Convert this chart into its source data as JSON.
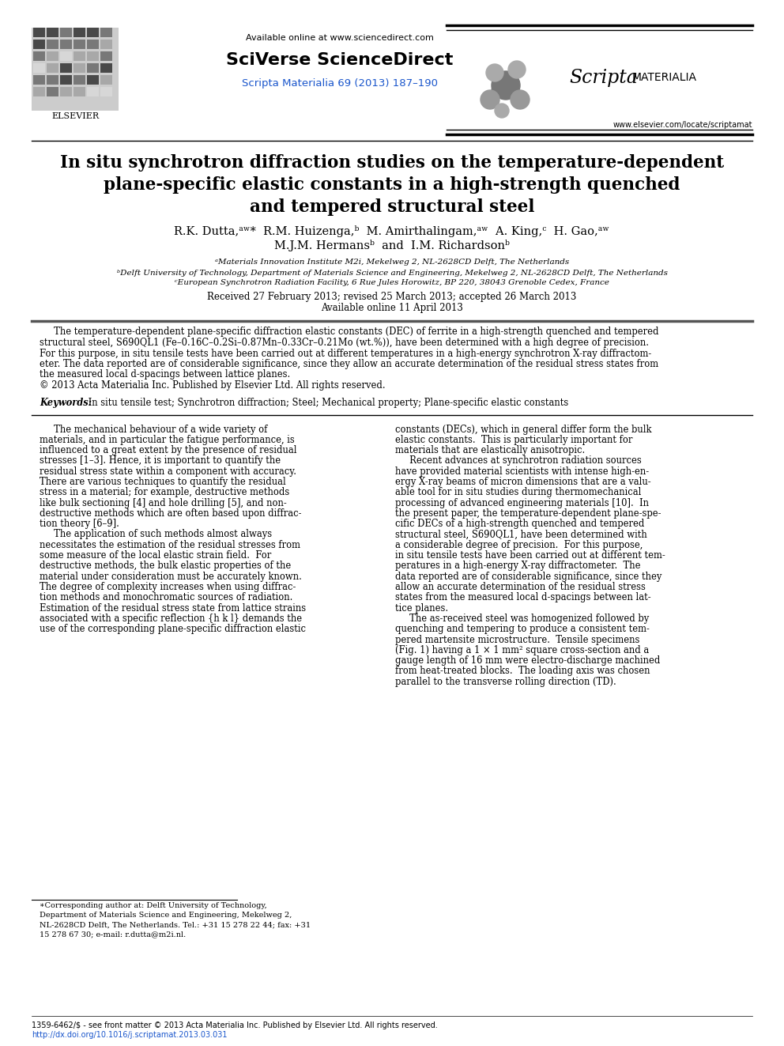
{
  "background_color": "#ffffff",
  "page_width": 9.92,
  "page_height": 13.23,
  "header": {
    "available_online_text": "Available online at www.sciencedirect.com",
    "sciverse_text": "SciVerse ScienceDirect",
    "journal_text": "Scripta Materialia 69 (2013) 187–190",
    "journal_text_color": "#1a56cc",
    "website_text": "www.elsevier.com/locate/scriptamat",
    "elsevier_text": "ELSEVIER"
  },
  "title": {
    "line1": "In situ synchrotron diffraction studies on the temperature-dependent",
    "line2": "plane-specific elastic constants in a high-strength quenched",
    "line3": "and tempered structural steel"
  },
  "authors": {
    "line1": "R.K. Dutta,ᵃʷ*  R.M. Huizenga,ᵇ  M. Amirthalingam,ᵃʷ  A. King,ᶜ  H. Gao,ᵃʷ",
    "line2": "M.J.M. Hermansᵇ  and  I.M. Richardsonᵇ"
  },
  "affiliations": {
    "a": "ᵃMaterials Innovation Institute M2i, Mekelweg 2, NL-2628CD Delft, The Netherlands",
    "b": "ᵇDelft University of Technology, Department of Materials Science and Engineering, Mekelweg 2, NL-2628CD Delft, The Netherlands",
    "c": "ᶜEuropean Synchrotron Radiation Facility, 6 Rue Jules Horowitz, BP 220, 38043 Grenoble Cedex, France"
  },
  "dates": {
    "line1": "Received 27 February 2013; revised 25 March 2013; accepted 26 March 2013",
    "line2": "Available online 11 April 2013"
  },
  "abstract_lines": [
    "     The temperature-dependent plane-specific diffraction elastic constants (DEC) of ferrite in a high-strength quenched and tempered",
    "structural steel, S690QL1 (Fe–0.16C–0.2Si–0.87Mn–0.33Cr–0.21Mo (wt.%)), have been determined with a high degree of precision.",
    "For this purpose, in situ tensile tests have been carried out at different temperatures in a high-energy synchrotron X-ray diffractom-",
    "eter. The data reported are of considerable significance, since they allow an accurate determination of the residual stress states from",
    "the measured local d-spacings between lattice planes.",
    "© 2013 Acta Materialia Inc. Published by Elsevier Ltd. All rights reserved."
  ],
  "keywords": {
    "label": "Keywords:",
    "text": " In situ tensile test; Synchrotron diffraction; Steel; Mechanical property; Plane-specific elastic constants"
  },
  "col1_lines": [
    "     The mechanical behaviour of a wide variety of",
    "materials, and in particular the fatigue performance, is",
    "influenced to a great extent by the presence of residual",
    "stresses [1–3]. Hence, it is important to quantify the",
    "residual stress state within a component with accuracy.",
    "There are various techniques to quantify the residual",
    "stress in a material; for example, destructive methods",
    "like bulk sectioning [4] and hole drilling [5], and non-",
    "destructive methods which are often based upon diffrac-",
    "tion theory [6–9].",
    "     The application of such methods almost always",
    "necessitates the estimation of the residual stresses from",
    "some measure of the local elastic strain field.  For",
    "destructive methods, the bulk elastic properties of the",
    "material under consideration must be accurately known.",
    "The degree of complexity increases when using diffrac-",
    "tion methods and monochromatic sources of radiation.",
    "Estimation of the residual stress state from lattice strains",
    "associated with a specific reflection {h k l} demands the",
    "use of the corresponding plane-specific diffraction elastic"
  ],
  "col2_lines": [
    "constants (DECs), which in general differ form the bulk",
    "elastic constants.  This is particularly important for",
    "materials that are elastically anisotropic.",
    "     Recent advances at synchrotron radiation sources",
    "have provided material scientists with intense high-en-",
    "ergy X-ray beams of micron dimensions that are a valu-",
    "able tool for in situ studies during thermomechanical",
    "processing of advanced engineering materials [10].  In",
    "the present paper, the temperature-dependent plane-spe-",
    "cific DECs of a high-strength quenched and tempered",
    "structural steel, S690QL1, have been determined with",
    "a considerable degree of precision.  For this purpose,",
    "in situ tensile tests have been carried out at different tem-",
    "peratures in a high-energy X-ray diffractometer.  The",
    "data reported are of considerable significance, since they",
    "allow an accurate determination of the residual stress",
    "states from the measured local d-spacings between lat-",
    "tice planes.",
    "     The as-received steel was homogenized followed by",
    "quenching and tempering to produce a consistent tem-",
    "pered martensite microstructure.  Tensile specimens",
    "(Fig. 1) having a 1 × 1 mm² square cross-section and a",
    "gauge length of 16 mm were electro-discharge machined",
    "from heat-treated blocks.  The loading axis was chosen",
    "parallel to the transverse rolling direction (TD)."
  ],
  "footnote_lines": [
    "∗Corresponding author at: Delft University of Technology,",
    "Department of Materials Science and Engineering, Mekelweg 2,",
    "NL-2628CD Delft, The Netherlands. Tel.: +31 15 278 22 44; fax: +31",
    "15 278 67 30; e-mail: r.dutta@m2i.nl."
  ],
  "footer": {
    "left": "1359-6462/$ - see front matter © 2013 Acta Materialia Inc. Published by Elsevier Ltd. All rights reserved.",
    "doi": "http://dx.doi.org/10.1016/j.scriptamat.2013.03.031"
  }
}
